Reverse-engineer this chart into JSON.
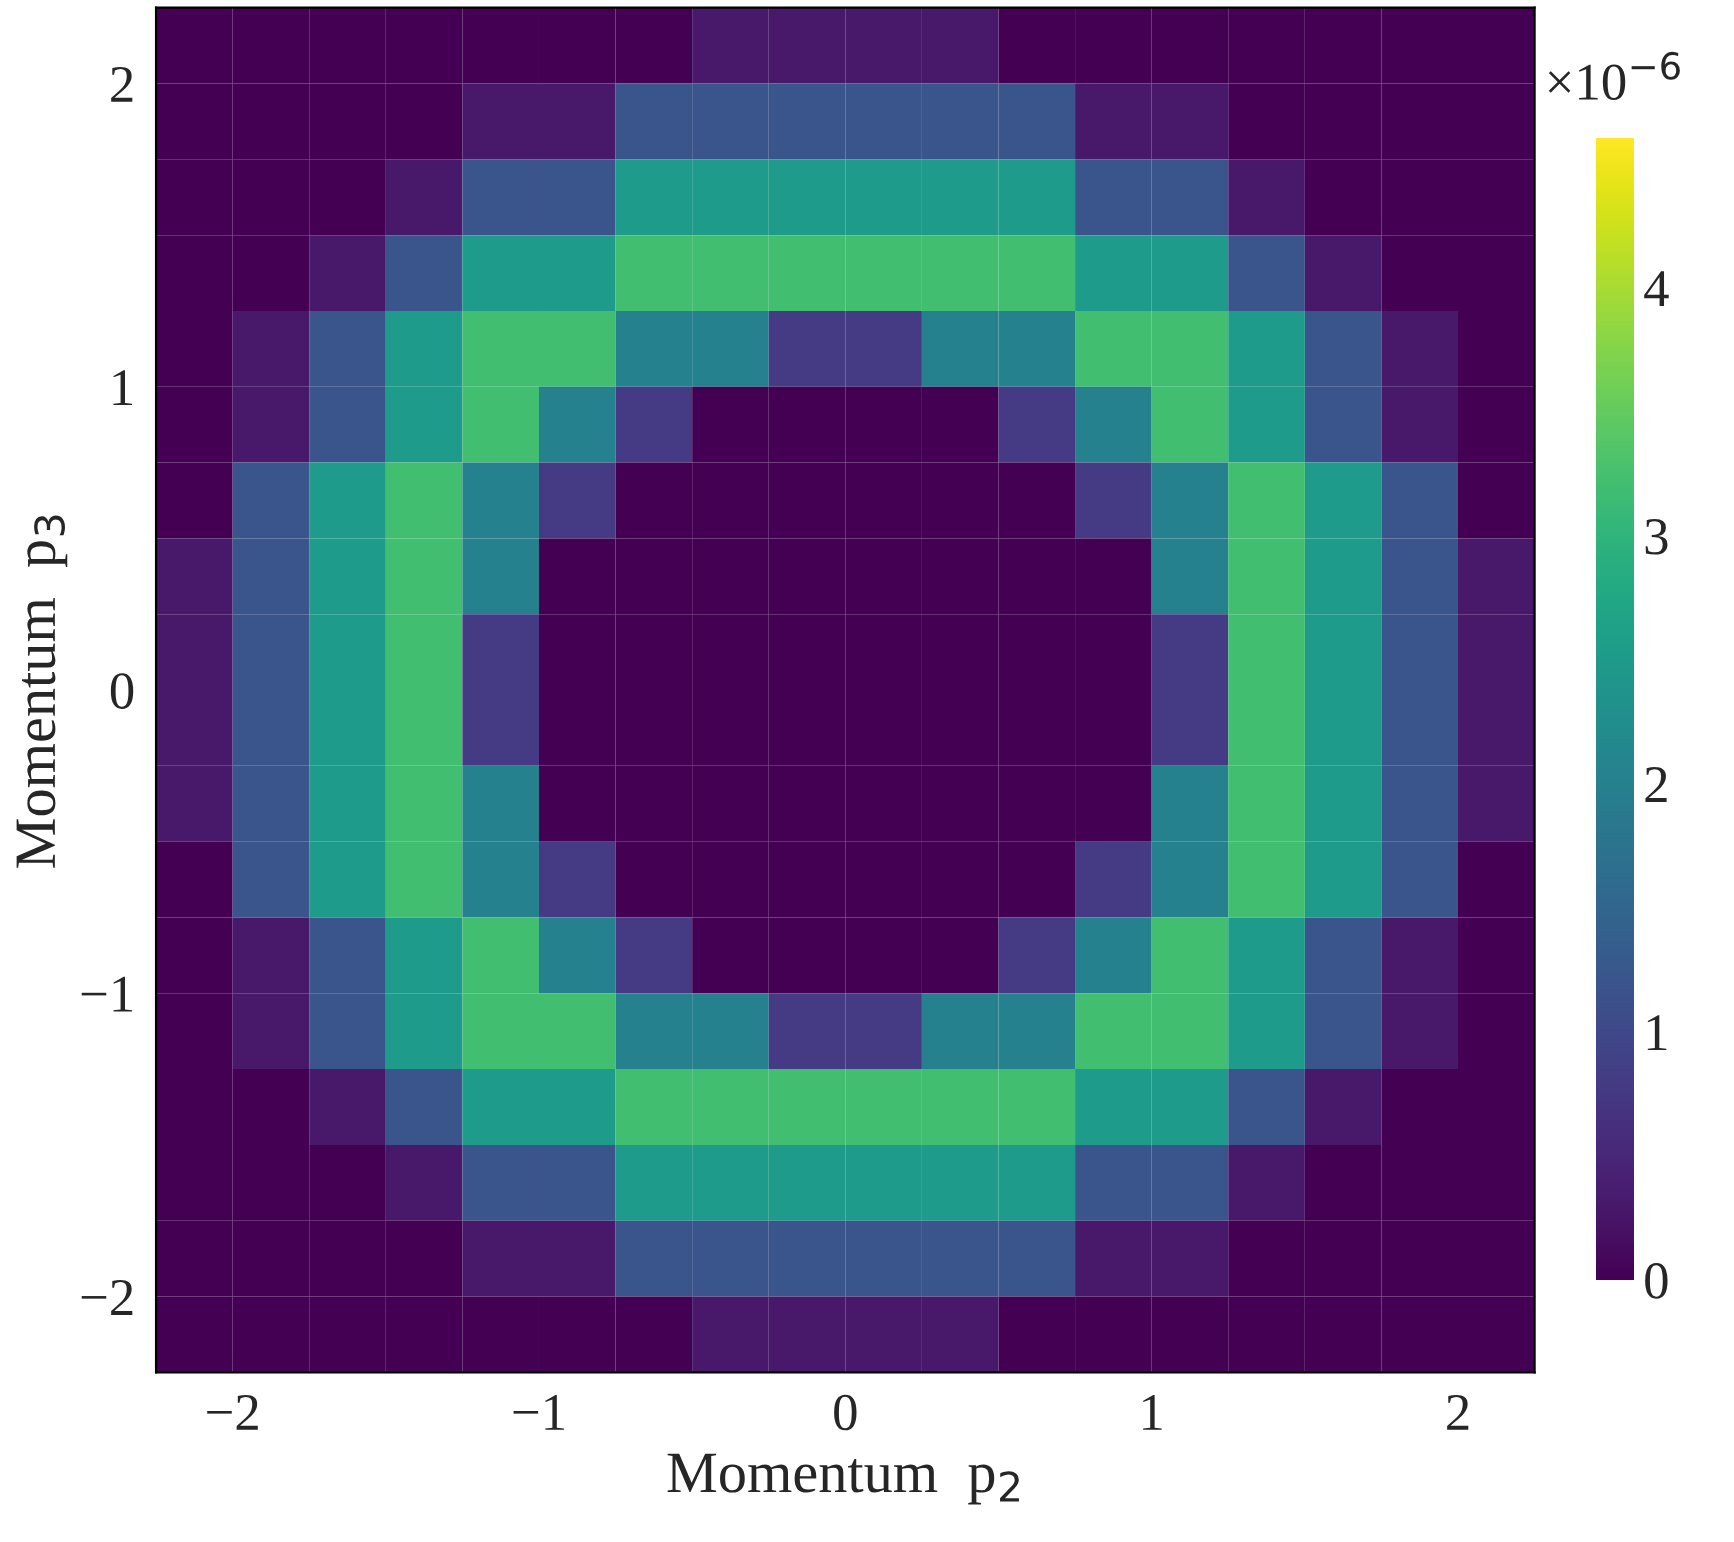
{
  "chart_data": {
    "type": "heatmap",
    "xlabel": "Momentum  p$_{2}$",
    "ylabel": "Momentum  p$_{3}$",
    "clabel": "×10$^{−6}$",
    "x": [
      -2.125,
      -1.875,
      -1.625,
      -1.375,
      -1.125,
      -0.875,
      -0.625,
      -0.375,
      -0.125,
      0.125,
      0.375,
      0.625,
      0.875,
      1.125,
      1.375,
      1.625,
      1.875,
      2.125
    ],
    "y": [
      2.125,
      1.875,
      1.625,
      1.375,
      1.125,
      0.875,
      0.625,
      0.375,
      0.125,
      -0.125,
      -0.375,
      -0.625,
      -0.875,
      -1.125,
      -1.375,
      -1.625,
      -1.875,
      -2.125
    ],
    "cells": [
      [
        0,
        0,
        0,
        0,
        0,
        0,
        0,
        0.3,
        0.3,
        0.3,
        0.3,
        0,
        0,
        0,
        0,
        0,
        0,
        0
      ],
      [
        0,
        0,
        0,
        0,
        0.3,
        0.3,
        1.2,
        1.2,
        1.2,
        1.2,
        1.2,
        1.2,
        0.3,
        0.3,
        0,
        0,
        0,
        0
      ],
      [
        0,
        0,
        0,
        0.3,
        1.2,
        1.2,
        2.5,
        2.5,
        2.5,
        2.5,
        2.5,
        2.5,
        1.2,
        1.2,
        0.3,
        0,
        0,
        0
      ],
      [
        0,
        0,
        0.3,
        1.2,
        2.5,
        2.5,
        3.2,
        3.2,
        3.2,
        3.2,
        3.2,
        3.2,
        2.5,
        2.5,
        1.2,
        0.3,
        0,
        0
      ],
      [
        0,
        0.3,
        1.2,
        2.5,
        3.2,
        3.2,
        2.0,
        2.0,
        0.8,
        0.8,
        2.0,
        2.0,
        3.2,
        3.2,
        2.5,
        1.2,
        0.3,
        0
      ],
      [
        0,
        0.3,
        1.2,
        2.5,
        3.2,
        2.0,
        0.8,
        0,
        0,
        0,
        0,
        0.8,
        2.0,
        3.2,
        2.5,
        1.2,
        0.3,
        0
      ],
      [
        0,
        1.2,
        2.5,
        3.2,
        2.0,
        0.8,
        0,
        0,
        0,
        0,
        0,
        0,
        0.8,
        2.0,
        3.2,
        2.5,
        1.2,
        0
      ],
      [
        0.3,
        1.2,
        2.5,
        3.2,
        2.0,
        0,
        0,
        0,
        0,
        0,
        0,
        0,
        0,
        2.0,
        3.2,
        2.5,
        1.2,
        0.3
      ],
      [
        0.3,
        1.2,
        2.5,
        3.2,
        0.8,
        0,
        0,
        0,
        0,
        0,
        0,
        0,
        0,
        0.8,
        3.2,
        2.5,
        1.2,
        0.3
      ],
      [
        0.3,
        1.2,
        2.5,
        3.2,
        0.8,
        0,
        0,
        0,
        0,
        0,
        0,
        0,
        0,
        0.8,
        3.2,
        2.5,
        1.2,
        0.3
      ],
      [
        0.3,
        1.2,
        2.5,
        3.2,
        2.0,
        0,
        0,
        0,
        0,
        0,
        0,
        0,
        0,
        2.0,
        3.2,
        2.5,
        1.2,
        0.3
      ],
      [
        0,
        1.2,
        2.5,
        3.2,
        2.0,
        0.8,
        0,
        0,
        0,
        0,
        0,
        0,
        0.8,
        2.0,
        3.2,
        2.5,
        1.2,
        0
      ],
      [
        0,
        0.3,
        1.2,
        2.5,
        3.2,
        2.0,
        0.8,
        0,
        0,
        0,
        0,
        0.8,
        2.0,
        3.2,
        2.5,
        1.2,
        0.3,
        0
      ],
      [
        0,
        0.3,
        1.2,
        2.5,
        3.2,
        3.2,
        2.0,
        2.0,
        0.8,
        0.8,
        2.0,
        2.0,
        3.2,
        3.2,
        2.5,
        1.2,
        0.3,
        0
      ],
      [
        0,
        0,
        0.3,
        1.2,
        2.5,
        2.5,
        3.2,
        3.2,
        3.2,
        3.2,
        3.2,
        3.2,
        2.5,
        2.5,
        1.2,
        0.3,
        0,
        0
      ],
      [
        0,
        0,
        0,
        0.3,
        1.2,
        1.2,
        2.5,
        2.5,
        2.5,
        2.5,
        2.5,
        2.5,
        1.2,
        1.2,
        0.3,
        0,
        0,
        0
      ],
      [
        0,
        0,
        0,
        0,
        0.3,
        0.3,
        1.2,
        1.2,
        1.2,
        1.2,
        1.2,
        1.2,
        0.3,
        0.3,
        0,
        0,
        0,
        0
      ],
      [
        0,
        0,
        0,
        0,
        0,
        0,
        0,
        0.3,
        0.3,
        0.3,
        0.3,
        0,
        0,
        0,
        0,
        0,
        0,
        0
      ]
    ],
    "xlim": [
      -2.25,
      2.25
    ],
    "ylim": [
      -2.25,
      2.25
    ],
    "xticks": [
      {
        "value": -2,
        "label": "−2"
      },
      {
        "value": -1,
        "label": "−1"
      },
      0,
      1,
      2
    ],
    "yticks": [
      {
        "value": -2,
        "label": "−2"
      },
      {
        "value": -1,
        "label": "−1"
      },
      0,
      1,
      2
    ],
    "clim": [
      0,
      4.6
    ],
    "cticks": [
      0,
      1,
      2,
      3,
      4
    ],
    "grid": false
  }
}
